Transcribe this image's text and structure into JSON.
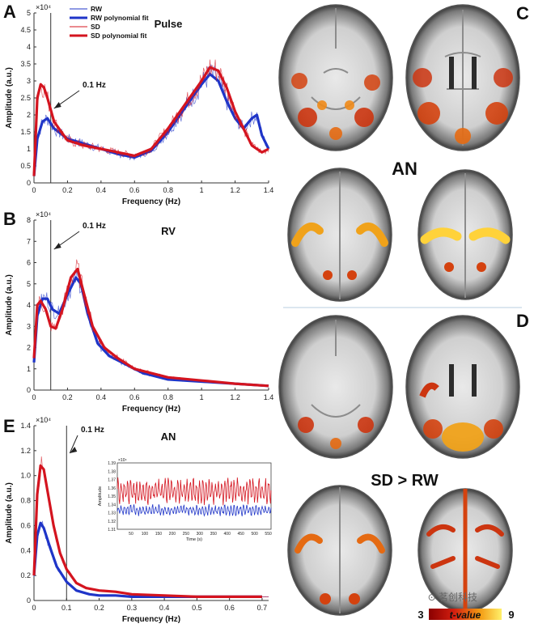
{
  "panels": {
    "a": "A",
    "b": "B",
    "c": "C",
    "d": "D",
    "e": "E"
  },
  "colors": {
    "rw": "#1f35c8",
    "sd": "#d4141f",
    "axis": "#333333",
    "divider": "#b8cfe0"
  },
  "chart_data": [
    {
      "id": "A",
      "type": "line",
      "title": "Pulse",
      "xlabel": "Frequency (Hz)",
      "ylabel": "Amplitude (a.u.)",
      "yscale_label": "×10⁴",
      "xlim": [
        0,
        1.4
      ],
      "ylim": [
        0,
        5
      ],
      "xticks": [
        "0",
        "0.2",
        "0.4",
        "0.6",
        "0.8",
        "1",
        "1.2",
        "1.4"
      ],
      "yticks": [
        "0",
        "0.5",
        "1",
        "1.5",
        "2",
        "2.5",
        "3",
        "3.5",
        "4",
        "4.5",
        "5"
      ],
      "annotation": "0.1 Hz",
      "vline": 0.1,
      "legend": [
        "RW",
        "RW polynomial fit",
        "SD",
        "SD polynomial fit"
      ],
      "series": [
        {
          "name": "RW polynomial fit",
          "x": [
            0,
            0.02,
            0.05,
            0.08,
            0.12,
            0.2,
            0.3,
            0.4,
            0.5,
            0.6,
            0.7,
            0.8,
            0.9,
            1.0,
            1.05,
            1.1,
            1.15,
            1.2,
            1.25,
            1.3,
            1.33,
            1.36,
            1.4
          ],
          "y": [
            0.2,
            1.3,
            1.8,
            1.9,
            1.6,
            1.3,
            1.15,
            1.0,
            0.85,
            0.75,
            0.95,
            1.5,
            2.2,
            2.9,
            3.2,
            3.0,
            2.4,
            1.9,
            1.6,
            1.9,
            2.0,
            1.4,
            1.0
          ]
        },
        {
          "name": "SD polynomial fit",
          "x": [
            0,
            0.02,
            0.04,
            0.06,
            0.08,
            0.12,
            0.2,
            0.3,
            0.4,
            0.5,
            0.6,
            0.7,
            0.8,
            0.9,
            1.0,
            1.05,
            1.1,
            1.15,
            1.2,
            1.25,
            1.3,
            1.33,
            1.36,
            1.4
          ],
          "y": [
            0.2,
            2.5,
            2.9,
            2.8,
            2.5,
            1.8,
            1.25,
            1.1,
            1.0,
            0.9,
            0.8,
            1.0,
            1.6,
            2.3,
            3.0,
            3.4,
            3.3,
            2.8,
            2.1,
            1.6,
            1.1,
            1.0,
            0.9,
            1.0
          ]
        }
      ]
    },
    {
      "id": "B",
      "type": "line",
      "title": "RV",
      "xlabel": "Frequency (Hz)",
      "ylabel": "Amplitude (a.u.)",
      "yscale_label": "×10⁴",
      "xlim": [
        0,
        1.4
      ],
      "ylim": [
        0,
        8
      ],
      "xticks": [
        "0",
        "0.2",
        "0.4",
        "0.6",
        "0.8",
        "1",
        "1.2",
        "1.4"
      ],
      "yticks": [
        "0",
        "1",
        "2",
        "3",
        "4",
        "5",
        "6",
        "7",
        "8"
      ],
      "annotation": "0.1 Hz",
      "vline": 0.1,
      "series": [
        {
          "name": "RW polynomial fit",
          "x": [
            0,
            0.02,
            0.05,
            0.08,
            0.11,
            0.15,
            0.2,
            0.25,
            0.28,
            0.32,
            0.38,
            0.45,
            0.55,
            0.65,
            0.8,
            1.0,
            1.2,
            1.4
          ],
          "y": [
            1.3,
            3.5,
            4.3,
            4.3,
            3.8,
            3.6,
            4.5,
            5.3,
            5.0,
            3.6,
            2.2,
            1.6,
            1.2,
            0.8,
            0.5,
            0.4,
            0.3,
            0.2
          ]
        },
        {
          "name": "SD polynomial fit",
          "x": [
            0,
            0.02,
            0.04,
            0.07,
            0.1,
            0.13,
            0.17,
            0.22,
            0.26,
            0.3,
            0.35,
            0.42,
            0.5,
            0.6,
            0.8,
            1.0,
            1.2,
            1.4
          ],
          "y": [
            1.5,
            4.0,
            4.2,
            3.8,
            3.0,
            2.9,
            3.8,
            5.3,
            5.7,
            4.5,
            3.0,
            2.0,
            1.5,
            1.0,
            0.6,
            0.45,
            0.3,
            0.2
          ]
        }
      ]
    },
    {
      "id": "E",
      "type": "line",
      "title": "AN",
      "xlabel": "Frequency (Hz)",
      "ylabel": "Amplitude (a.u.)",
      "yscale_label": "×10⁴",
      "xlim": [
        0,
        0.72
      ],
      "ylim": [
        0,
        1.4
      ],
      "xticks": [
        "0",
        "0.1",
        "0.2",
        "0.3",
        "0.4",
        "0.5",
        "0.6",
        "0.7"
      ],
      "yticks": [
        "0",
        "0.2",
        "0.4",
        "0.6",
        "0.8",
        "1.0",
        "1.2",
        "1.4"
      ],
      "annotation": "0.1 Hz",
      "vline": 0.1,
      "series": [
        {
          "name": "RW polynomial fit",
          "x": [
            0,
            0.01,
            0.02,
            0.03,
            0.05,
            0.07,
            0.1,
            0.13,
            0.17,
            0.2,
            0.25,
            0.3,
            0.4,
            0.5,
            0.6,
            0.7
          ],
          "y": [
            0.2,
            0.52,
            0.62,
            0.58,
            0.42,
            0.27,
            0.15,
            0.08,
            0.05,
            0.04,
            0.04,
            0.03,
            0.03,
            0.03,
            0.03,
            0.03
          ]
        },
        {
          "name": "SD polynomial fit",
          "x": [
            0,
            0.01,
            0.02,
            0.03,
            0.04,
            0.06,
            0.08,
            0.1,
            0.13,
            0.16,
            0.2,
            0.25,
            0.3,
            0.4,
            0.5,
            0.6,
            0.7
          ],
          "y": [
            0.2,
            0.85,
            1.08,
            1.05,
            0.9,
            0.6,
            0.38,
            0.25,
            0.14,
            0.1,
            0.08,
            0.07,
            0.05,
            0.04,
            0.03,
            0.03,
            0.03
          ]
        }
      ],
      "inset": {
        "ylabel": "Amplitude",
        "xlabel": "Time (s)",
        "yscale_label": "×10⁴",
        "xlim": [
          0,
          560
        ],
        "ylim": [
          1.31,
          1.39
        ],
        "xticks": [
          "50",
          "100",
          "150",
          "200",
          "250",
          "300",
          "350",
          "400",
          "450",
          "500",
          "550"
        ],
        "yticks": [
          "1.39",
          "1.38",
          "1.37",
          "1.36",
          "1.35",
          "1.34",
          "1.33",
          "1.32",
          "1.31"
        ],
        "sd_mean": 1.356,
        "sd_amp": 0.014,
        "rw_mean": 1.333,
        "rw_amp": 0.006
      }
    }
  ],
  "brain_panel": {
    "top_label": "AN",
    "bottom_label": "SD > RW",
    "colorbar": {
      "min": "3",
      "max": "9",
      "label": "t-value"
    },
    "watermark": "⊙ 茗创科技"
  }
}
